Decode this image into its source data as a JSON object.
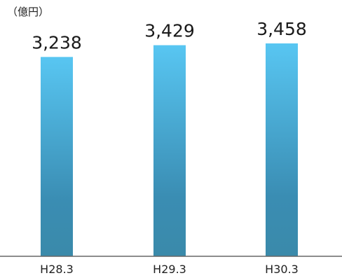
{
  "chart_data": {
    "type": "bar",
    "unit_label": "（億円）",
    "categories": [
      "H28.3",
      "H29.3",
      "H30.3"
    ],
    "values": [
      3238,
      3429,
      3458
    ],
    "value_labels": [
      "3,238",
      "3,429",
      "3,458"
    ],
    "ylim": [
      0,
      3458
    ],
    "grid": false,
    "legend": "none",
    "colors": {
      "bar_top": "#58c6f2",
      "bar_mid": "#3a8db3",
      "bar_bottom": "#3a8aaa",
      "axis": "#666666"
    }
  }
}
